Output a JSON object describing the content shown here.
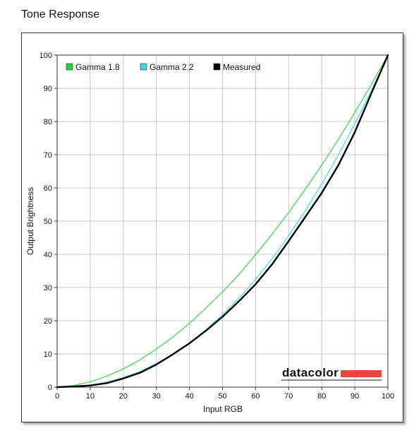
{
  "page": {
    "title": "Tone Response"
  },
  "brand": {
    "name": "datacolor",
    "accent": "#e8473f"
  },
  "chart_data": {
    "type": "line",
    "title": "",
    "xlabel": "Input RGB",
    "ylabel": "Output Brightness",
    "xlim": [
      0,
      100
    ],
    "ylim": [
      0,
      100
    ],
    "xticks": [
      0,
      10,
      20,
      30,
      40,
      50,
      60,
      70,
      80,
      90,
      100
    ],
    "yticks": [
      0,
      10,
      20,
      30,
      40,
      50,
      60,
      70,
      80,
      90,
      100
    ],
    "grid": true,
    "legend_position": "top-left",
    "x": [
      0,
      5,
      10,
      15,
      20,
      25,
      30,
      35,
      40,
      45,
      50,
      55,
      60,
      65,
      70,
      75,
      80,
      85,
      90,
      95,
      100
    ],
    "series": [
      {
        "name": "Gamma 1.8",
        "color": "#2ecc40",
        "values": [
          0,
          0.5,
          1.6,
          3.3,
          5.5,
          8.2,
          11.5,
          15.1,
          19.2,
          23.8,
          28.7,
          34.0,
          39.9,
          46.1,
          52.6,
          59.6,
          66.9,
          74.6,
          82.7,
          91.2,
          100
        ]
      },
      {
        "name": "Gamma 2.2",
        "color": "#3fd6e0",
        "values": [
          0,
          0.1,
          0.6,
          1.5,
          2.9,
          4.7,
          7.1,
          9.9,
          13.3,
          17.3,
          21.8,
          26.8,
          32.5,
          38.7,
          45.6,
          53.1,
          61.2,
          69.9,
          79.3,
          89.3,
          100
        ]
      },
      {
        "name": "Measured",
        "color": "#000000",
        "values": [
          0,
          0.2,
          0.5,
          1.2,
          2.6,
          4.3,
          6.8,
          9.9,
          13.2,
          17.0,
          21.2,
          25.9,
          31.0,
          37.0,
          44.0,
          51.2,
          58.5,
          66.8,
          76.8,
          88.5,
          100
        ]
      }
    ]
  }
}
